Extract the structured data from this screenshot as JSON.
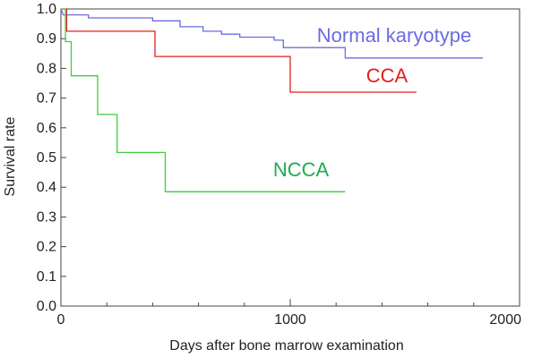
{
  "chart_data": {
    "type": "line",
    "xlabel": "Days after bone marrow examination",
    "ylabel": "Survival rate",
    "xlim": [
      0,
      2000
    ],
    "ylim": [
      0.0,
      1.0
    ],
    "x_ticks": [
      "0",
      "1000",
      "2000"
    ],
    "y_ticks": [
      "0.0",
      "0.1",
      "0.2",
      "0.3",
      "0.4",
      "0.5",
      "0.6",
      "0.7",
      "0.8",
      "0.9",
      "1.0"
    ],
    "grid": false,
    "series": [
      {
        "name": "Normal karyotype",
        "color": "#6b6be0",
        "points": [
          [
            0,
            1.0
          ],
          [
            10,
            0.98
          ],
          [
            120,
            0.98
          ],
          [
            120,
            0.97
          ],
          [
            400,
            0.97
          ],
          [
            400,
            0.96
          ],
          [
            520,
            0.96
          ],
          [
            520,
            0.94
          ],
          [
            620,
            0.94
          ],
          [
            620,
            0.925
          ],
          [
            700,
            0.925
          ],
          [
            700,
            0.915
          ],
          [
            780,
            0.915
          ],
          [
            780,
            0.905
          ],
          [
            930,
            0.905
          ],
          [
            930,
            0.895
          ],
          [
            970,
            0.895
          ],
          [
            970,
            0.87
          ],
          [
            1240,
            0.87
          ],
          [
            1240,
            0.835
          ],
          [
            1840,
            0.835
          ]
        ]
      },
      {
        "name": "CCA",
        "color": "#e02020",
        "points": [
          [
            0,
            1.0
          ],
          [
            25,
            1.0
          ],
          [
            25,
            0.925
          ],
          [
            410,
            0.925
          ],
          [
            410,
            0.84
          ],
          [
            1000,
            0.84
          ],
          [
            1000,
            0.72
          ],
          [
            1550,
            0.72
          ]
        ]
      },
      {
        "name": "NCCA",
        "color": "#3fcc3f",
        "points": [
          [
            0,
            1.0
          ],
          [
            20,
            1.0
          ],
          [
            20,
            0.89
          ],
          [
            45,
            0.89
          ],
          [
            45,
            0.775
          ],
          [
            160,
            0.775
          ],
          [
            160,
            0.645
          ],
          [
            245,
            0.645
          ],
          [
            245,
            0.517
          ],
          [
            455,
            0.517
          ],
          [
            455,
            0.385
          ],
          [
            1240,
            0.385
          ]
        ]
      }
    ]
  },
  "labels": {
    "normal": "Normal karyotype",
    "cca": "CCA",
    "ncca": "NCCA"
  }
}
